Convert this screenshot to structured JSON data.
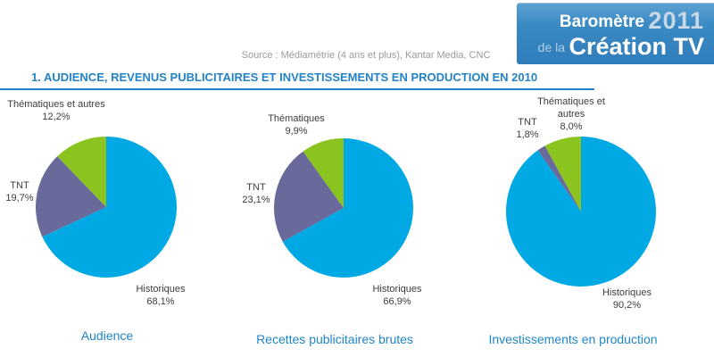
{
  "header": {
    "source": "Source : Médiamétrie (4 ans et plus), Kantar Media, CNC",
    "title": "1. AUDIENCE, REVENUS PUBLICITAIRES ET INVESTISSEMENTS EN PRODUCTION EN 2010",
    "logo": {
      "line1_left": "Baromètre",
      "line1_right": "2011",
      "line2_left": "de la",
      "line2_right": "Création TV"
    }
  },
  "colors": {
    "historiques": "#00A9E3",
    "tnt": "#69699B",
    "thematiques": "#8CC41F",
    "accent_blue": "#2383C6"
  },
  "chart_data": [
    {
      "type": "pie",
      "id": "audience",
      "title": "Audience",
      "start_angle_deg": 0,
      "direction": "clockwise",
      "legend": "labels-around-pie",
      "slices": [
        {
          "label": "Historiques",
          "value": 68.1,
          "display": "68,1%",
          "color_key": "historiques"
        },
        {
          "label": "TNT",
          "value": 19.7,
          "display": "19,7%",
          "color_key": "tnt"
        },
        {
          "label": "Thématiques et autres",
          "value": 12.2,
          "display": "12,2%",
          "color_key": "thematiques"
        }
      ]
    },
    {
      "type": "pie",
      "id": "recettes-publicitaires",
      "title": "Recettes publicitaires brutes",
      "start_angle_deg": 0,
      "direction": "clockwise",
      "legend": "labels-around-pie",
      "slices": [
        {
          "label": "Historiques",
          "value": 66.9,
          "display": "66,9%",
          "color_key": "historiques"
        },
        {
          "label": "TNT",
          "value": 23.1,
          "display": "23,1%",
          "color_key": "tnt"
        },
        {
          "label": "Thématiques",
          "value": 9.9,
          "display": "9,9%",
          "color_key": "thematiques"
        }
      ]
    },
    {
      "type": "pie",
      "id": "investissements-production",
      "title": "Investissements en production",
      "start_angle_deg": 0,
      "direction": "clockwise",
      "legend": "labels-around-pie",
      "slices": [
        {
          "label": "Historiques",
          "value": 90.2,
          "display": "90,2%",
          "color_key": "historiques"
        },
        {
          "label": "TNT",
          "value": 1.8,
          "display": "1,8%",
          "color_key": "tnt"
        },
        {
          "label": "Thématiques et autres",
          "value": 8.0,
          "display": "8,0%",
          "color_key": "thematiques"
        }
      ]
    }
  ]
}
